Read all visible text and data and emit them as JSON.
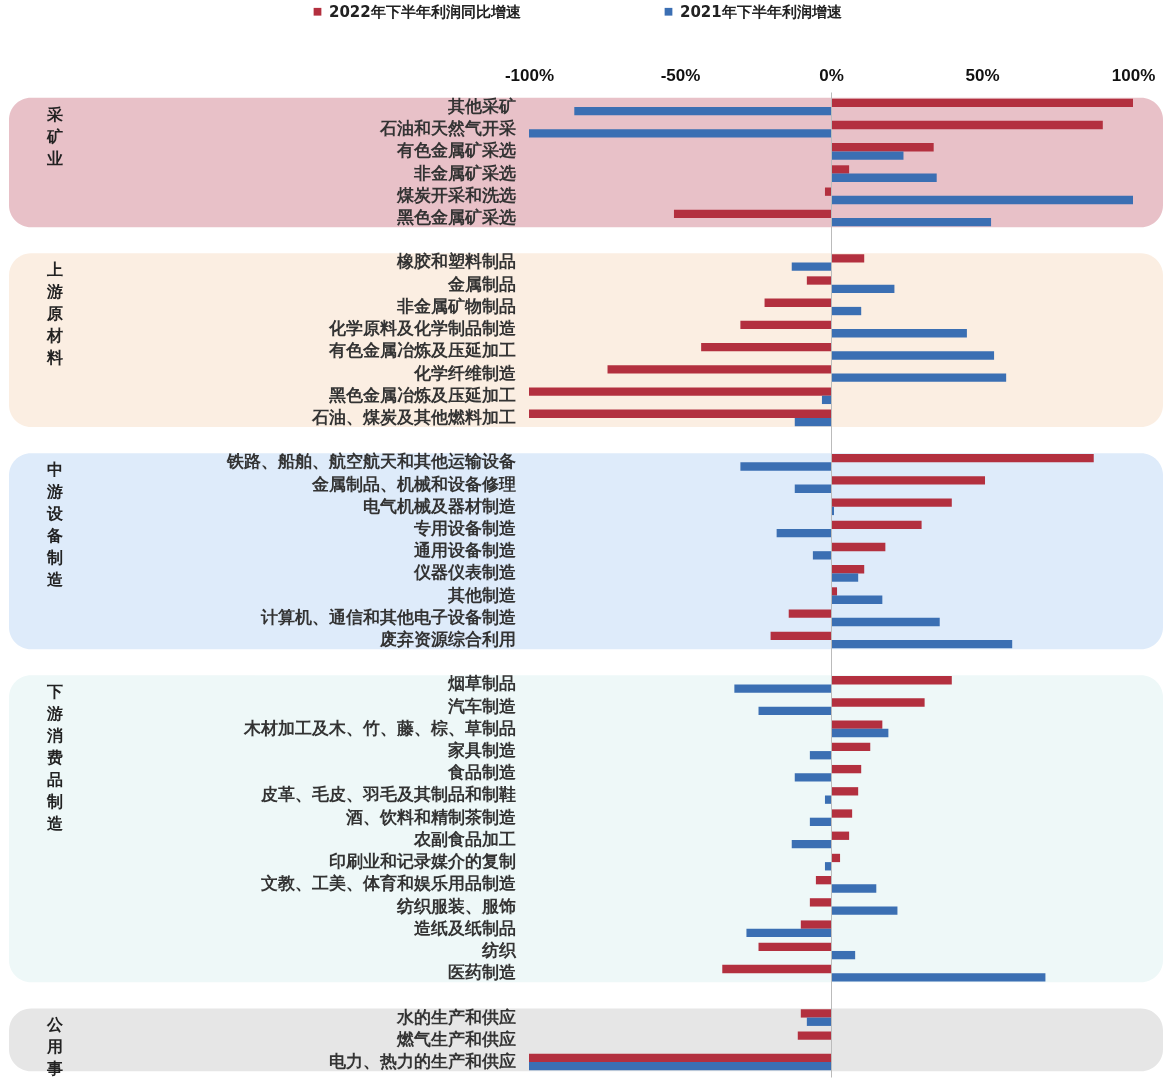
{
  "chart_data": {
    "type": "bar",
    "orientation": "horizontal",
    "categories": [
      "其他采矿",
      "石油和天然气开采",
      "有色金属矿采选",
      "非金属矿采选",
      "煤炭开采和洗选",
      "黑色金属矿采选",
      "橡胶和塑料制品",
      "金属制品",
      "非金属矿物制品",
      "化学原料及化学制品制造",
      "有色金属冶炼及压延加工",
      "化学纤维制造",
      "黑色金属冶炼及压延加工",
      "石油、煤炭及其他燃料加工",
      "铁路、船舶、航空航天和其他运输设备",
      "金属制品、机械和设备修理",
      "电气机械及器材制造",
      "专用设备制造",
      "通用设备制造",
      "仪器仪表制造",
      "其他制造",
      "计算机、通信和其他电子设备制造",
      "废弃资源综合利用",
      "烟草制品",
      "汽车制造",
      "木材加工及木、竹、藤、棕、草制品",
      "家具制造",
      "食品制造",
      "皮革、毛皮、羽毛及其制品和制鞋",
      "酒、饮料和精制茶制造",
      "农副食品加工",
      "印刷业和记录媒介的复制",
      "文教、工美、体育和娱乐用品制造",
      "纺织服装、服饰",
      "造纸及纸制品",
      "纺织",
      "医药制造",
      "水的生产和供应",
      "燃气生产和供应",
      "电力、热力的生产和供应"
    ],
    "series": [
      {
        "name": "2022年下半年利润同比增速",
        "color": "#b3303f",
        "values": [
          100,
          90,
          34,
          6,
          -2,
          -52,
          11,
          -8,
          -22,
          -30,
          -43,
          -74,
          -100,
          -100,
          87,
          51,
          40,
          30,
          18,
          11,
          2,
          -14,
          -20,
          40,
          31,
          17,
          13,
          10,
          9,
          7,
          6,
          3,
          -5,
          -7,
          -10,
          -24,
          -36,
          -10,
          -11,
          -100
        ]
      },
      {
        "name": "2021年下半年利润增速",
        "color": "#3b6fb3",
        "values": [
          -85,
          -100,
          24,
          35,
          100,
          53,
          -13,
          21,
          10,
          45,
          54,
          58,
          -3,
          -12,
          -30,
          -12,
          1,
          -18,
          -6,
          9,
          17,
          36,
          60,
          -32,
          -24,
          19,
          -7,
          -12,
          -2,
          -7,
          -13,
          -2,
          15,
          22,
          -28,
          8,
          71,
          -8,
          0,
          -100
        ]
      }
    ],
    "xlim": [
      -100,
      100
    ],
    "xticks": [
      {
        "value": -100,
        "label": "-100%"
      },
      {
        "value": -50,
        "label": "-50%"
      },
      {
        "value": 0,
        "label": "0%"
      },
      {
        "value": 50,
        "label": "50%"
      },
      {
        "value": 100,
        "label": "100%"
      }
    ],
    "bands": [
      {
        "axis": "y",
        "from": "其他采矿",
        "to": "黑色金属矿采选",
        "label": "采矿业",
        "color": "#e8c1c8"
      },
      {
        "axis": "y",
        "from": "橡胶和塑料制品",
        "to": "石油、煤炭及其他燃料加工",
        "label": "上游原材料",
        "color": "#fbeee2"
      },
      {
        "axis": "y",
        "from": "铁路、船舶、航空航天和其他运输设备",
        "to": "废弃资源综合利用",
        "label": "中游设备制造",
        "color": "#deebfa"
      },
      {
        "axis": "y",
        "from": "烟草制品",
        "to": "医药制造",
        "label": "下游消费品制造",
        "color": "#eef8f8"
      },
      {
        "axis": "y",
        "from": "水的生产和供应",
        "to": "电力、热力的生产和供应",
        "label": "公用事业",
        "color": "#e6e6e6"
      }
    ],
    "legend": "top"
  }
}
